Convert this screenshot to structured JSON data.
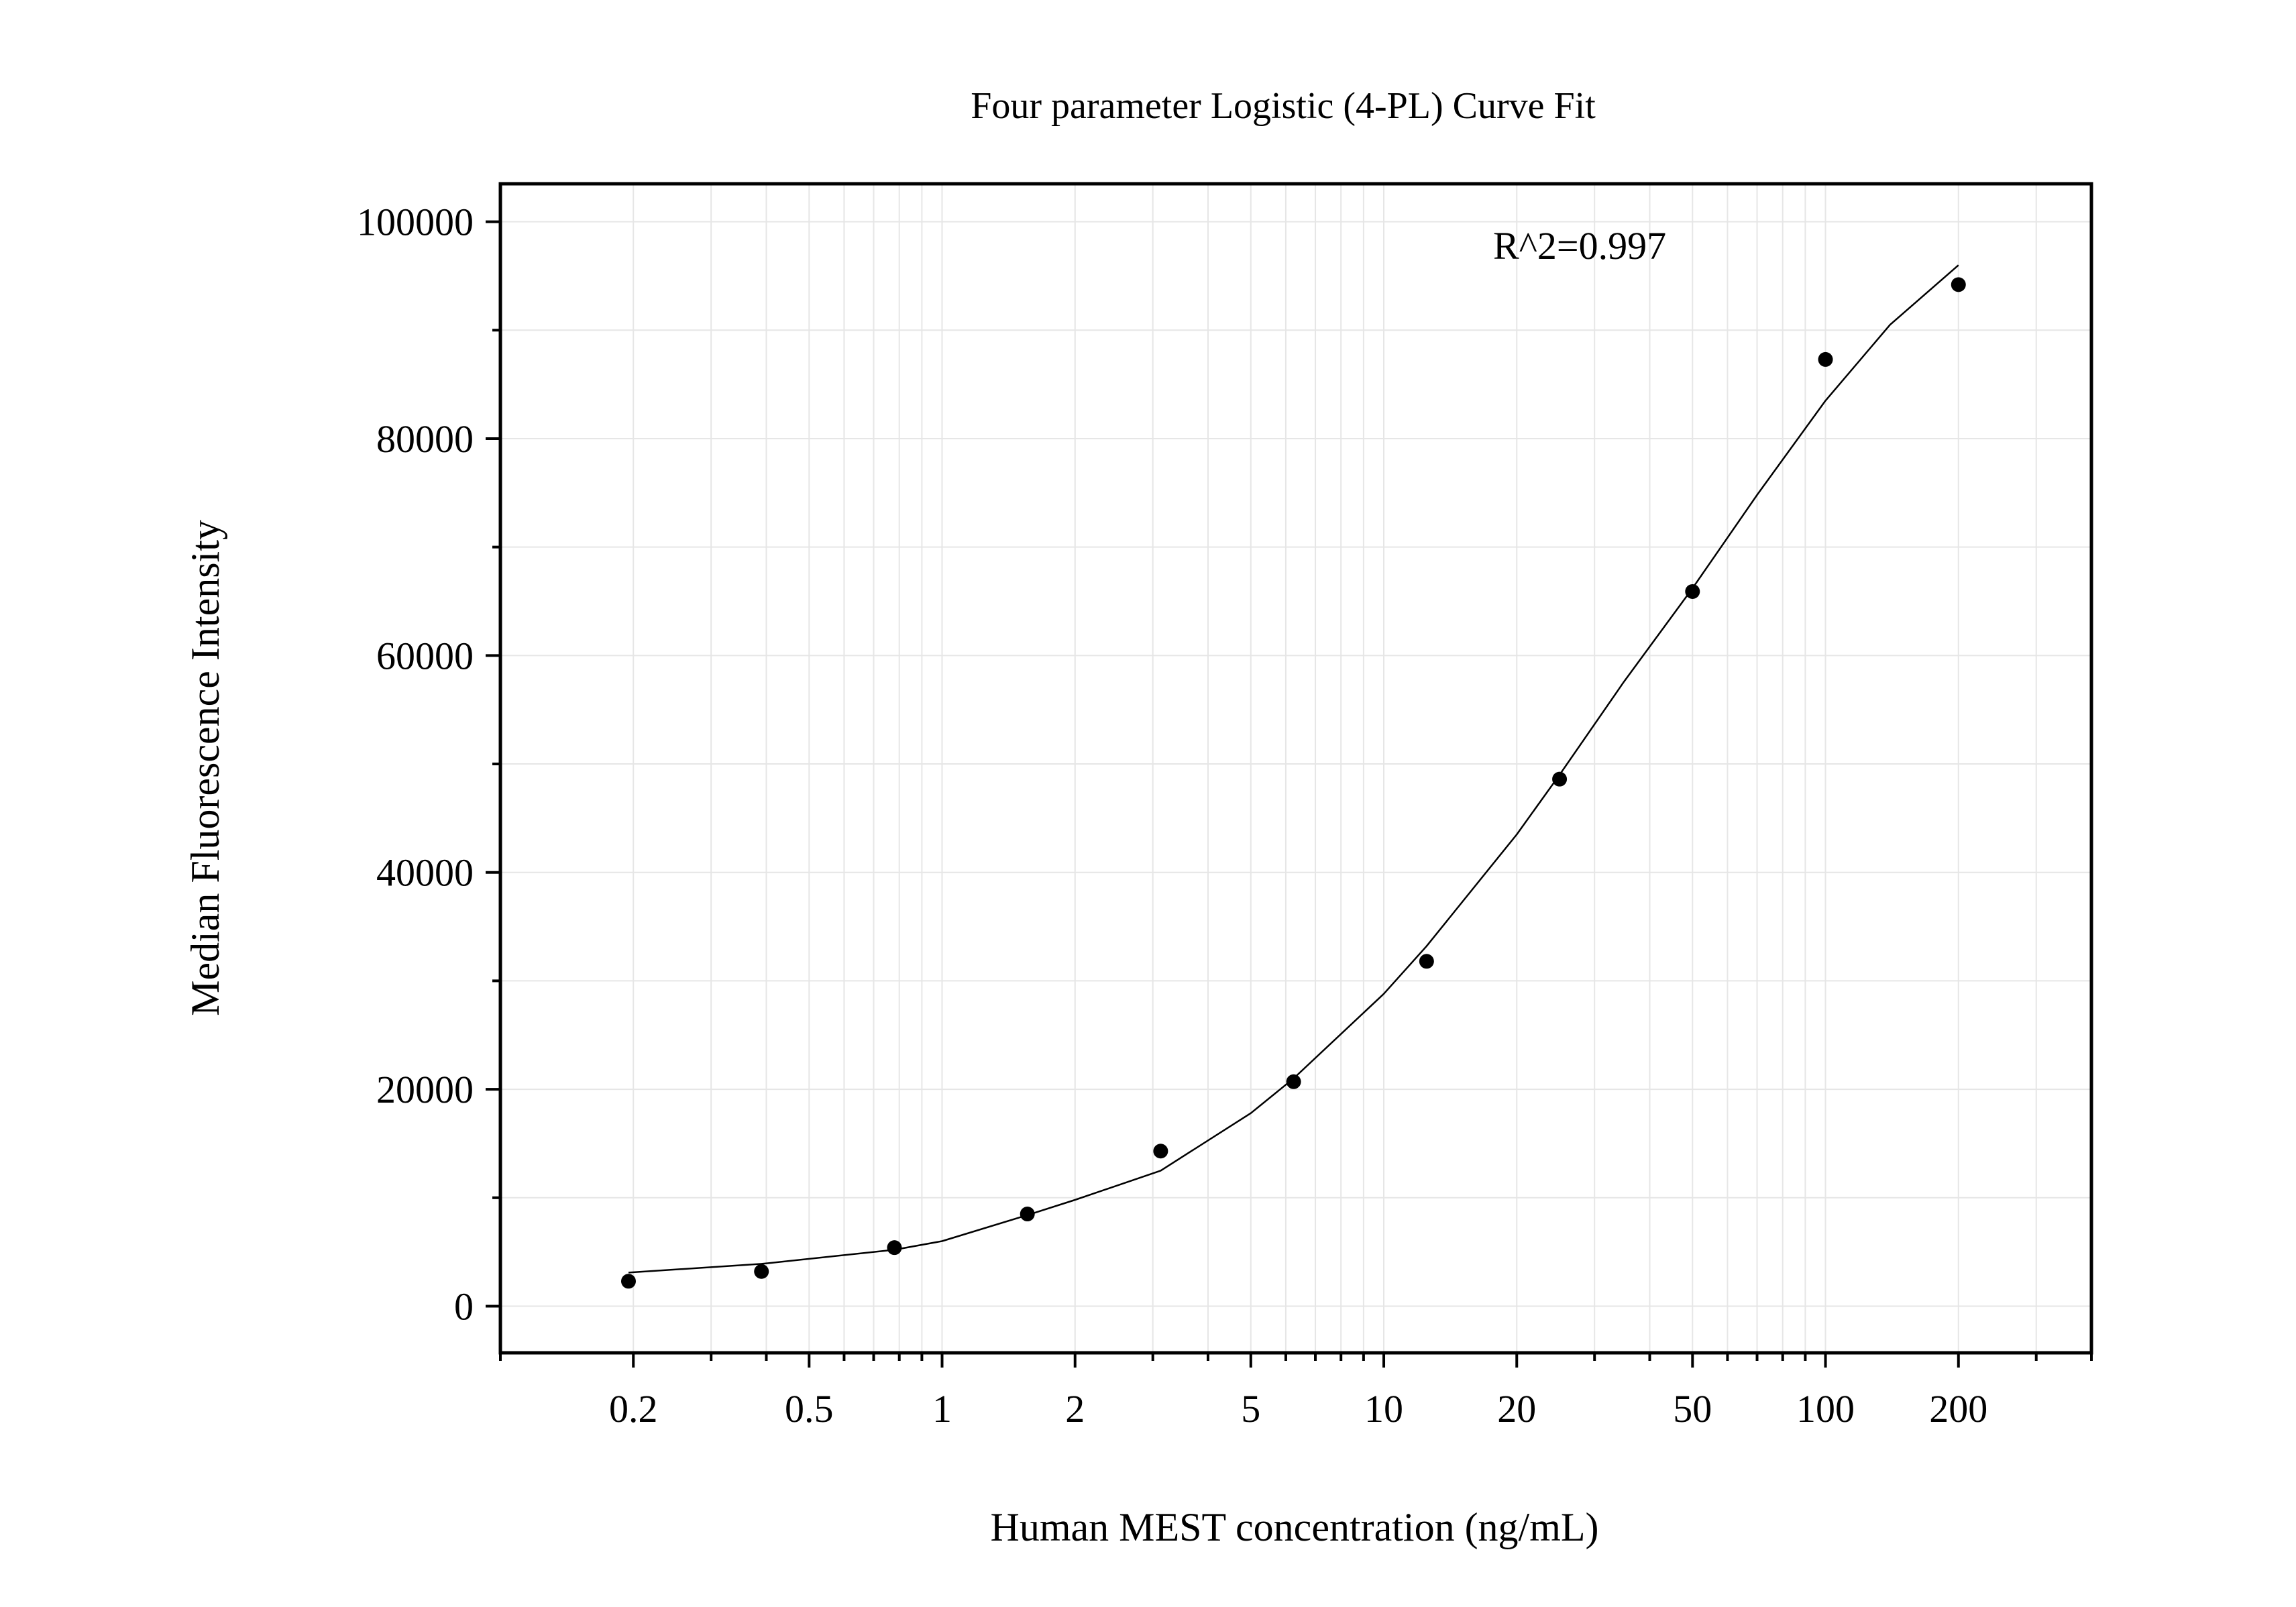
{
  "chart_data": {
    "type": "scatter",
    "title": "Four parameter Logistic (4-PL) Curve Fit",
    "xlabel": "Human MEST concentration (ng/mL)",
    "ylabel": "Median Fluorescence Intensity",
    "x_scale": "log",
    "xlim": [
      0.1,
      400
    ],
    "ylim": [
      -4300,
      103500
    ],
    "x_ticks": [
      0.2,
      0.5,
      1,
      2,
      5,
      10,
      20,
      50,
      100,
      200
    ],
    "x_tick_labels": [
      "0.2",
      "0.5",
      "1",
      "2",
      "5",
      "10",
      "20",
      "50",
      "100",
      "200"
    ],
    "y_ticks": [
      0,
      20000,
      40000,
      60000,
      80000,
      100000
    ],
    "y_tick_labels": [
      "0",
      "20000",
      "40000",
      "60000",
      "80000",
      "100000"
    ],
    "y_minor_ticks": [
      10000,
      30000,
      50000,
      70000,
      90000
    ],
    "grid": true,
    "annotation": "R^2=0.997",
    "colors": {
      "points": "#000000",
      "curve": "#000000",
      "grid": "#e6e6e6",
      "frame": "#000000"
    },
    "series": [
      {
        "kind": "points",
        "x": [
          0.195,
          0.39,
          0.78,
          1.56,
          3.125,
          6.25,
          12.5,
          25,
          50,
          100,
          200
        ],
        "y": [
          2300,
          3200,
          5400,
          8500,
          14300,
          20700,
          31800,
          48600,
          65900,
          87300,
          94200
        ]
      },
      {
        "kind": "fitted-curve",
        "model": "4PL",
        "x_range": [
          0.195,
          200
        ],
        "points": [
          [
            0.195,
            3100
          ],
          [
            0.39,
            3900
          ],
          [
            0.78,
            5200
          ],
          [
            1.0,
            6000
          ],
          [
            1.56,
            8400
          ],
          [
            2.0,
            9800
          ],
          [
            3.125,
            12500
          ],
          [
            5.0,
            17800
          ],
          [
            6.25,
            21000
          ],
          [
            10.0,
            28800
          ],
          [
            12.5,
            33200
          ],
          [
            20.0,
            43500
          ],
          [
            25.0,
            49000
          ],
          [
            35.0,
            57600
          ],
          [
            50.0,
            66200
          ],
          [
            70.0,
            74800
          ],
          [
            100.0,
            83500
          ],
          [
            140.0,
            90500
          ],
          [
            200.0,
            96000
          ]
        ]
      }
    ]
  }
}
